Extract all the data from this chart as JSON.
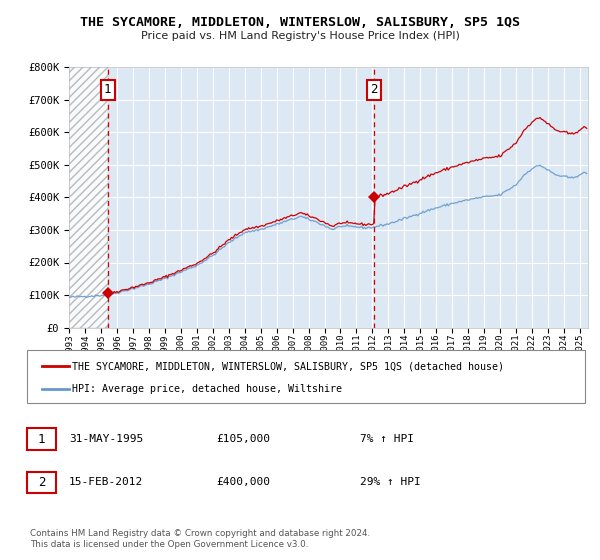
{
  "title": "THE SYCAMORE, MIDDLETON, WINTERSLOW, SALISBURY, SP5 1QS",
  "subtitle": "Price paid vs. HM Land Registry's House Price Index (HPI)",
  "sale1_date": 1995.42,
  "sale1_price": 105000,
  "sale1_label": "1",
  "sale1_date_str": "31-MAY-1995",
  "sale1_price_str": "£105,000",
  "sale1_pct": "7% ↑ HPI",
  "sale2_date": 2012.12,
  "sale2_price": 400000,
  "sale2_label": "2",
  "sale2_date_str": "15-FEB-2012",
  "sale2_price_str": "£400,000",
  "sale2_pct": "29% ↑ HPI",
  "legend_line1": "THE SYCAMORE, MIDDLETON, WINTERSLOW, SALISBURY, SP5 1QS (detached house)",
  "legend_line2": "HPI: Average price, detached house, Wiltshire",
  "footnote": "Contains HM Land Registry data © Crown copyright and database right 2024.\nThis data is licensed under the Open Government Licence v3.0.",
  "property_color": "#cc0000",
  "hpi_color": "#6699cc",
  "bg_color": "#dde8f5",
  "ylim": [
    0,
    800000
  ],
  "xlim_start": 1993.0,
  "xlim_end": 2025.5,
  "yticks": [
    0,
    100000,
    200000,
    300000,
    400000,
    500000,
    600000,
    700000,
    800000
  ],
  "xticks": [
    1993,
    1994,
    1995,
    1996,
    1997,
    1998,
    1999,
    2000,
    2001,
    2002,
    2003,
    2004,
    2005,
    2006,
    2007,
    2008,
    2009,
    2010,
    2011,
    2012,
    2013,
    2014,
    2015,
    2016,
    2017,
    2018,
    2019,
    2020,
    2021,
    2022,
    2023,
    2024,
    2025
  ]
}
